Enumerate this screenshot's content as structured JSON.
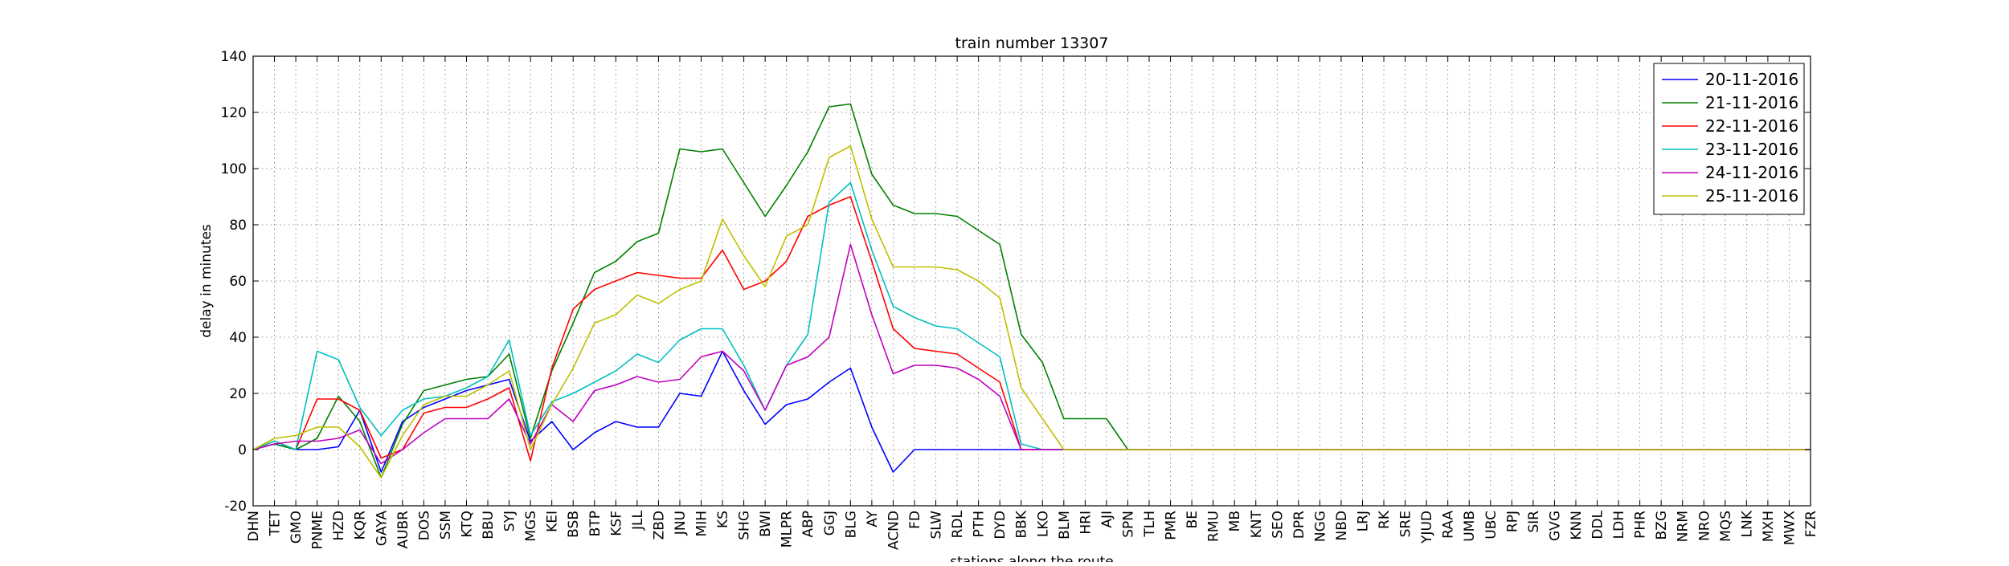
{
  "chart_data": {
    "type": "line",
    "title": "train number 13307",
    "xlabel": "stations along the route",
    "ylabel": "delay in minutes",
    "ylim": [
      -20,
      140
    ],
    "yticks": [
      -20,
      0,
      20,
      40,
      60,
      80,
      100,
      120,
      140
    ],
    "grid": true,
    "legend_position": "top-right",
    "categories": [
      "DHN",
      "TET",
      "GMO",
      "PNME",
      "HZD",
      "KQR",
      "GAYA",
      "AUBR",
      "DOS",
      "SSM",
      "KTQ",
      "BBU",
      "SYJ",
      "MGS",
      "KEI",
      "BSB",
      "BTP",
      "KSF",
      "JLL",
      "ZBD",
      "JNU",
      "MIH",
      "KS",
      "SHG",
      "BWI",
      "MLPR",
      "ABP",
      "GGJ",
      "BLG",
      "AY",
      "ACND",
      "FD",
      "SLW",
      "RDL",
      "PTH",
      "DYD",
      "BBK",
      "LKO",
      "BLM",
      "HRI",
      "AJI",
      "SPN",
      "TLH",
      "PMR",
      "BE",
      "RMU",
      "MB",
      "KNT",
      "SEO",
      "DPR",
      "NGG",
      "NBD",
      "LRJ",
      "RK",
      "SRE",
      "YJUD",
      "RAA",
      "UMB",
      "UBC",
      "RPJ",
      "SIR",
      "GVG",
      "KNN",
      "DDL",
      "LDH",
      "PHR",
      "BZG",
      "NRM",
      "NRO",
      "MQS",
      "LNK",
      "MXH",
      "MWX",
      "FZR"
    ],
    "series": [
      {
        "name": "20-11-2016",
        "color": "#0000ff",
        "values": [
          0,
          2,
          0,
          0,
          1,
          14,
          -8,
          10,
          15,
          18,
          21,
          23,
          25,
          3,
          10,
          0,
          6,
          10,
          8,
          8,
          20,
          19,
          35,
          21,
          9,
          16,
          18,
          24,
          29,
          8,
          -8,
          0,
          0,
          0,
          0,
          0,
          0,
          0,
          0,
          0,
          0,
          0,
          0,
          0,
          0,
          0,
          0,
          0,
          0,
          0,
          0,
          0,
          0,
          0,
          0,
          0,
          0,
          0,
          0,
          0,
          0,
          0,
          0,
          0,
          0,
          0,
          0,
          0,
          0,
          0,
          0,
          0,
          0,
          0
        ]
      },
      {
        "name": "21-11-2016",
        "color": "#008000",
        "values": [
          0,
          2,
          0,
          4,
          19,
          10,
          -10,
          9,
          21,
          23,
          25,
          26,
          34,
          4,
          28,
          45,
          63,
          67,
          74,
          77,
          107,
          106,
          107,
          95,
          83,
          94,
          106,
          122,
          123,
          98,
          87,
          84,
          84,
          83,
          78,
          73,
          41,
          31,
          11,
          11,
          11,
          0,
          0,
          0,
          0,
          0,
          0,
          0,
          0,
          0,
          0,
          0,
          0,
          0,
          0,
          0,
          0,
          0,
          0,
          0,
          0,
          0,
          0,
          0,
          0,
          0,
          0,
          0,
          0,
          0,
          0,
          0,
          0,
          0
        ]
      },
      {
        "name": "22-11-2016",
        "color": "#ff0000",
        "values": [
          0,
          3,
          0,
          18,
          18,
          14,
          -3,
          0,
          13,
          15,
          15,
          18,
          22,
          -4,
          29,
          50,
          57,
          60,
          63,
          62,
          61,
          61,
          71,
          57,
          60,
          67,
          83,
          87,
          90,
          67,
          43,
          36,
          35,
          34,
          29,
          24,
          0,
          0,
          0,
          0,
          0,
          0,
          0,
          0,
          0,
          0,
          0,
          0,
          0,
          0,
          0,
          0,
          0,
          0,
          0,
          0,
          0,
          0,
          0,
          0,
          0,
          0,
          0,
          0,
          0,
          0,
          0,
          0,
          0,
          0,
          0,
          0,
          0,
          0
        ]
      },
      {
        "name": "23-11-2016",
        "color": "#00bfbf",
        "values": [
          0,
          3,
          0,
          35,
          32,
          15,
          5,
          14,
          18,
          19,
          22,
          26,
          39,
          5,
          17,
          20,
          24,
          28,
          34,
          31,
          39,
          43,
          43,
          30,
          14,
          30,
          41,
          88,
          95,
          71,
          51,
          47,
          44,
          43,
          38,
          33,
          2,
          0,
          0,
          0,
          0,
          0,
          0,
          0,
          0,
          0,
          0,
          0,
          0,
          0,
          0,
          0,
          0,
          0,
          0,
          0,
          0,
          0,
          0,
          0,
          0,
          0,
          0,
          0,
          0,
          0,
          0,
          0,
          0,
          0,
          0,
          0,
          0,
          0
        ]
      },
      {
        "name": "24-11-2016",
        "color": "#bf00bf",
        "values": [
          0,
          2,
          3,
          3,
          4,
          7,
          -5,
          0,
          6,
          11,
          11,
          11,
          18,
          2,
          16,
          10,
          21,
          23,
          26,
          24,
          25,
          33,
          35,
          28,
          14,
          30,
          33,
          40,
          73,
          48,
          27,
          30,
          30,
          29,
          25,
          19,
          0,
          0,
          0,
          0,
          0,
          0,
          0,
          0,
          0,
          0,
          0,
          0,
          0,
          0,
          0,
          0,
          0,
          0,
          0,
          0,
          0,
          0,
          0,
          0,
          0,
          0,
          0,
          0,
          0,
          0,
          0,
          0,
          0,
          0,
          0,
          0,
          0,
          0
        ]
      },
      {
        "name": "25-11-2016",
        "color": "#bfbf00",
        "values": [
          0,
          4,
          5,
          8,
          8,
          1,
          -10,
          5,
          16,
          19,
          19,
          23,
          28,
          0,
          16,
          29,
          45,
          48,
          55,
          52,
          57,
          60,
          82,
          69,
          58,
          76,
          80,
          104,
          108,
          82,
          65,
          65,
          65,
          64,
          60,
          54,
          22,
          11,
          0,
          0,
          0,
          0,
          0,
          0,
          0,
          0,
          0,
          0,
          0,
          0,
          0,
          0,
          0,
          0,
          0,
          0,
          0,
          0,
          0,
          0,
          0,
          0,
          0,
          0,
          0,
          0,
          0,
          0,
          0,
          0,
          0,
          0,
          0,
          0
        ]
      }
    ]
  }
}
